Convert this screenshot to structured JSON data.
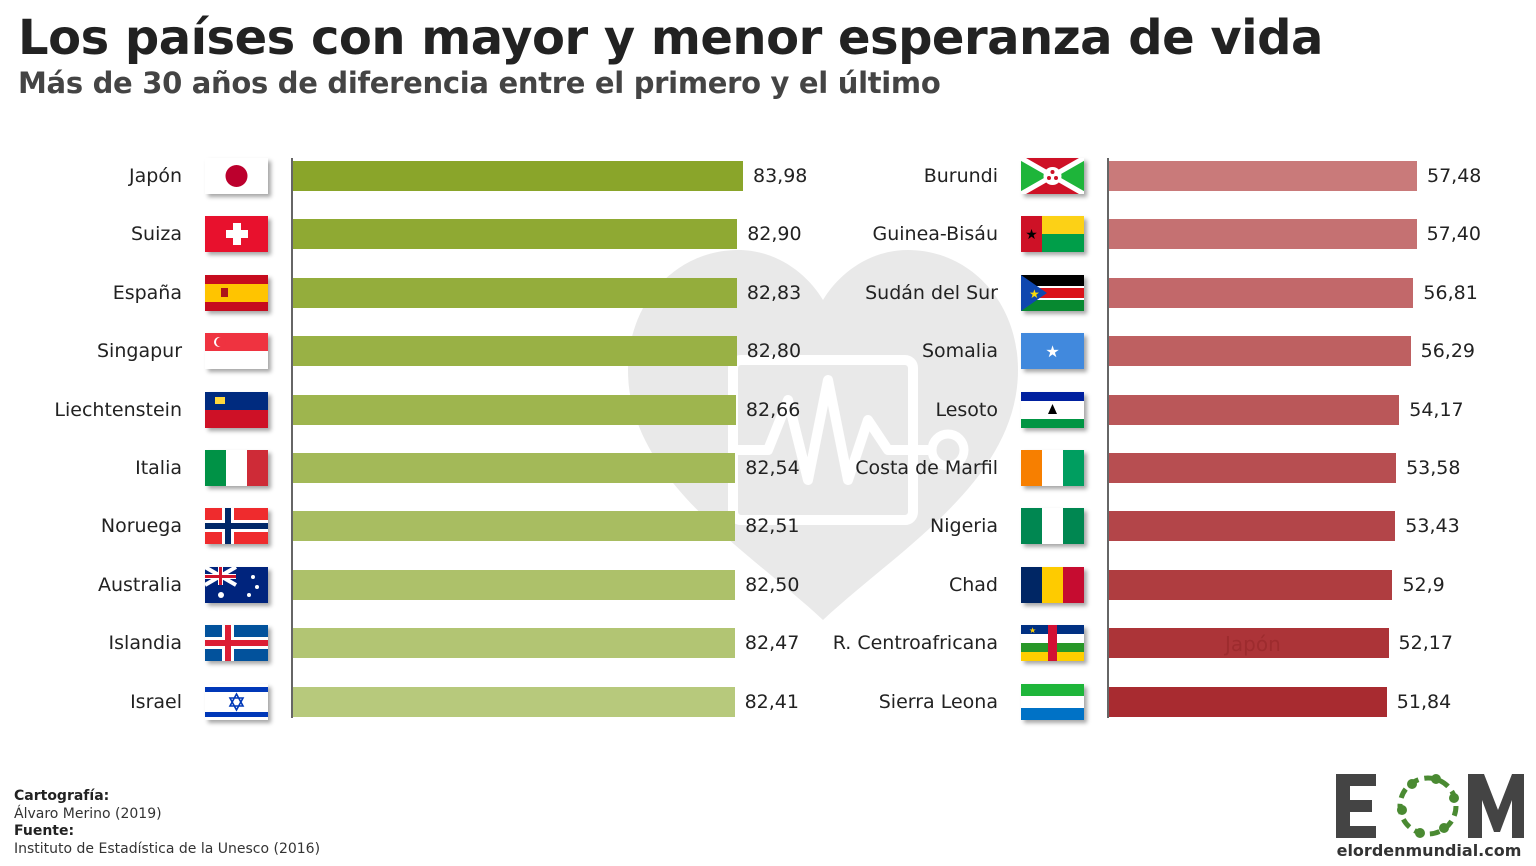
{
  "title": "Los países con mayor y menor esperanza de vida",
  "subtitle": "Más de 30 años de diferencia entre el primero y el último",
  "credits": {
    "cartography_label": "Cartografía:",
    "cartography": "Álvaro Merino (2019)",
    "source_label": "Fuente:",
    "source": "Instituto de Estadística de la Unesco (2016)"
  },
  "logo": {
    "letters": "EOM",
    "url_text": "elordenmundial.com",
    "accent_color": "#4a8a32"
  },
  "ghost_label": "Japón",
  "chart_data": [
    {
      "type": "bar",
      "orientation": "horizontal",
      "categories": [
        "Japón",
        "Suiza",
        "España",
        "Singapur",
        "Liechtenstein",
        "Italia",
        "Noruega",
        "Australia",
        "Islandia",
        "Israel"
      ],
      "values": [
        83.98,
        82.9,
        82.83,
        82.8,
        82.66,
        82.54,
        82.51,
        82.5,
        82.47,
        82.41
      ],
      "data_labels": [
        "83,98",
        "82,90",
        "82,83",
        "82,80",
        "82,66",
        "82,54",
        "82,51",
        "82,50",
        "82,47",
        "82,41"
      ],
      "xlim": [
        0,
        84
      ],
      "colors": [
        "#8aa52a",
        "#b7c97c"
      ],
      "grid": false
    },
    {
      "type": "bar",
      "orientation": "horizontal",
      "categories": [
        "Burundi",
        "Guinea-Bisáu",
        "Sudán del Sur",
        "Somalia",
        "Lesoto",
        "Costa de Marfil",
        "Nigeria",
        "Chad",
        "R. Centroafricana",
        "Sierra Leona"
      ],
      "values": [
        57.48,
        57.4,
        56.81,
        56.29,
        54.17,
        53.58,
        53.43,
        52.9,
        52.17,
        51.84
      ],
      "data_labels": [
        "57,48",
        "57,40",
        "56,81",
        "56,29",
        "54,17",
        "53,58",
        "53,43",
        "52,9",
        "52,17",
        "51,84"
      ],
      "xlim": [
        0,
        84
      ],
      "colors": [
        "#c97a7a",
        "#a82b30"
      ],
      "grid": false
    }
  ]
}
